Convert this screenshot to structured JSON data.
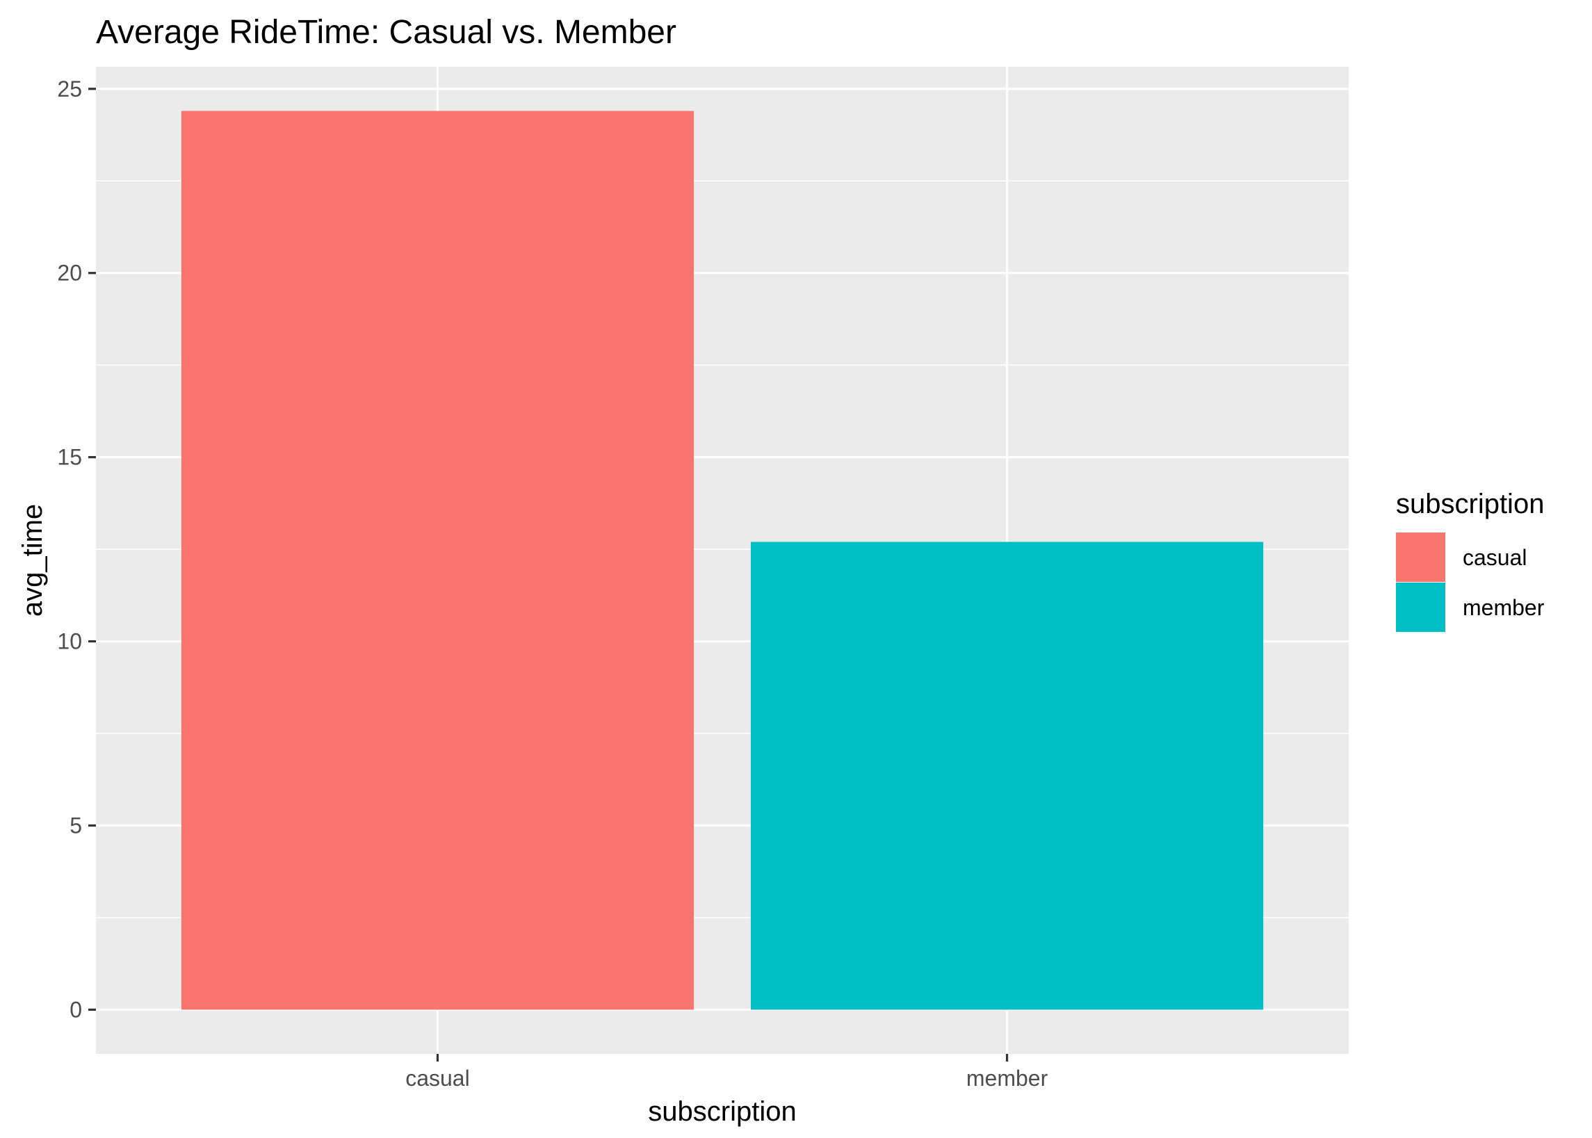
{
  "chart_data": {
    "type": "bar",
    "title": "Average RideTime: Casual vs. Member",
    "xlabel": "subscription",
    "ylabel": "avg_time",
    "categories": [
      "casual",
      "member"
    ],
    "values": [
      24.4,
      12.7
    ],
    "colors": [
      "#F8766D",
      "#00BFC4"
    ],
    "ylim": [
      -1.2,
      25.6
    ],
    "yticks": [
      0,
      5,
      10,
      15,
      20,
      25
    ],
    "ytick_labels": [
      "0",
      "5",
      "10",
      "15",
      "20",
      "25"
    ],
    "grid": true,
    "legend": {
      "title": "subscription",
      "position": "right",
      "entries": [
        "casual",
        "member"
      ]
    }
  }
}
